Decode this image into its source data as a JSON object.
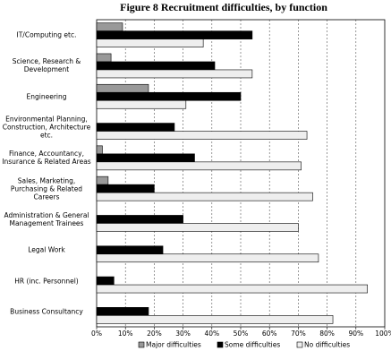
{
  "chart_data": {
    "type": "bar",
    "orientation": "horizontal",
    "title": "Figure 8   Recruitment difficulties, by function",
    "categories": [
      "IT/Computing etc.",
      "Science, Research & Development",
      "Engineering",
      "Environmental Planning, Construction, Architecture etc.",
      "Finance, Accountancy, Insurance & Related Areas",
      "Sales, Marketing, Purchasing & Related Careers",
      "Administration & General Management Trainees",
      "Legal Work",
      "HR (inc. Personnel)",
      "Business Consultancy"
    ],
    "series": [
      {
        "name": "Major difficulties",
        "color": "#999999",
        "values": [
          9,
          5,
          18,
          0,
          2,
          4,
          0,
          0,
          0,
          0
        ]
      },
      {
        "name": "Some difficulties",
        "color": "#000000",
        "values": [
          54,
          41,
          50,
          27,
          34,
          20,
          30,
          23,
          6,
          18
        ]
      },
      {
        "name": "No difficulties",
        "color": "#eeeeee",
        "values": [
          37,
          54,
          31,
          73,
          71,
          75,
          70,
          77,
          94,
          82
        ]
      }
    ],
    "xlim": [
      0,
      100
    ],
    "xticks": [
      {
        "value": 0,
        "label": "0%"
      },
      {
        "value": 10,
        "label": "10%"
      },
      {
        "value": 20,
        "label": "20%"
      },
      {
        "value": 30,
        "label": "30%"
      },
      {
        "value": 40,
        "label": "40%"
      },
      {
        "value": 50,
        "label": "50%"
      },
      {
        "value": 60,
        "label": "60%"
      },
      {
        "value": 70,
        "label": "70%"
      },
      {
        "value": 80,
        "label": "80%"
      },
      {
        "value": 90,
        "label": "90%"
      },
      {
        "value": 100,
        "label": "100%"
      }
    ],
    "grid": true,
    "legend": "bottom"
  }
}
